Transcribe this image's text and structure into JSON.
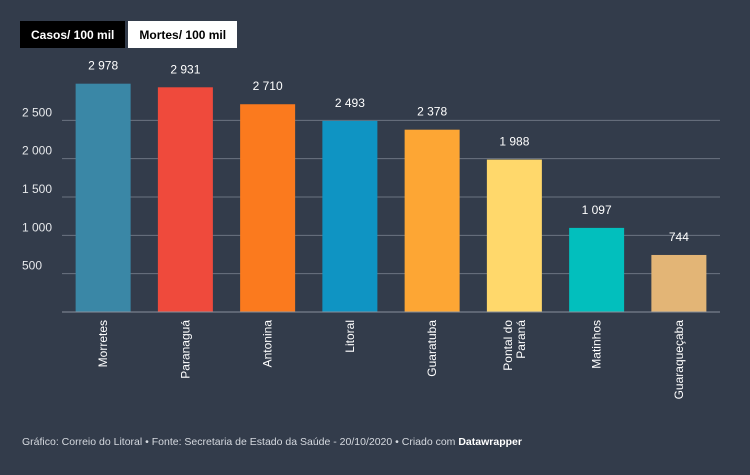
{
  "tabs": [
    {
      "label": "Casos/ 100 mil",
      "active": true
    },
    {
      "label": "Mortes/ 100 mil",
      "active": false
    }
  ],
  "chart_data": {
    "type": "bar",
    "title": "",
    "xlabel": "",
    "ylabel": "",
    "categories": [
      "Morretes",
      "Paranaguá",
      "Antonina",
      "Litoral",
      "Guaratuba",
      "Pontal do Paraná",
      "Matinhos",
      "Guaraqueçaba"
    ],
    "category_lines": [
      [
        "Morretes"
      ],
      [
        "Paranaguá"
      ],
      [
        "Antonina"
      ],
      [
        "Litoral"
      ],
      [
        "Guaratuba"
      ],
      [
        "Pontal do",
        "Paraná"
      ],
      [
        "Matinhos"
      ],
      [
        "Guaraqueçaba"
      ]
    ],
    "values": [
      2978,
      2931,
      2710,
      2493,
      2378,
      1988,
      1097,
      744
    ],
    "value_labels": [
      "2 978",
      "2 931",
      "2 710",
      "2 493",
      "2 378",
      "1 988",
      "1 097",
      "744"
    ],
    "colors": [
      "#3a87a6",
      "#ef4a3c",
      "#fb7a1e",
      "#0f94c3",
      "#fda634",
      "#ffd86b",
      "#02bfbd",
      "#e3b576"
    ],
    "yticks": [
      500,
      1000,
      1500,
      2000,
      2500
    ],
    "ytick_labels": [
      "500",
      "1 000",
      "1 500",
      "2 000",
      "2 500"
    ],
    "ylim": [
      0,
      3000
    ],
    "grid": true
  },
  "footer": {
    "text": "Gráfico: Correio do Litoral • Fonte: Secretaria de Estado da Saúde - 20/10/2020 • Criado com ",
    "brand": "Datawrapper"
  }
}
